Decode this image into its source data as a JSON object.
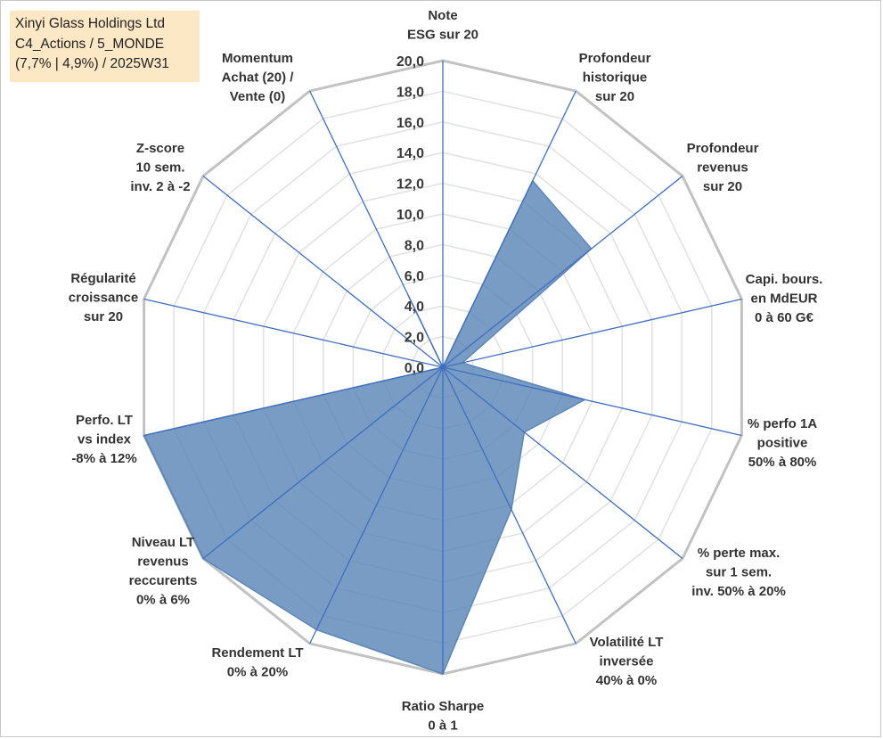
{
  "title_lines": [
    "Xinyi Glass Holdings Ltd",
    "C4_Actions / 5_MONDE",
    "(7,7% | 4,9%) / 2025W31"
  ],
  "colors": {
    "fill": "#5b86b8",
    "axis": "#3f6fbf",
    "grid": "#e2e2e2",
    "outer": "#c2c2c2",
    "title_bg": "#fde8c6"
  },
  "chart_data": {
    "type": "radar",
    "rmax": 20,
    "tick_step": 2,
    "ticks": [
      "0,0",
      "2,0",
      "4,0",
      "6,0",
      "8,0",
      "10,0",
      "12,0",
      "14,0",
      "16,0",
      "18,0",
      "20,0"
    ],
    "axes": [
      {
        "lines": [
          "Note",
          "ESG sur 20"
        ],
        "value": 0
      },
      {
        "lines": [
          "Profondeur",
          "historique",
          "sur 20"
        ],
        "value": 13.5
      },
      {
        "lines": [
          "Profondeur",
          "revenus",
          "sur 20"
        ],
        "value": 12.4
      },
      {
        "lines": [
          "Capi. bours.",
          "en MdEUR",
          "0 à 60 G€"
        ],
        "value": 1.3
      },
      {
        "lines": [
          "% perfo 1A",
          "positive",
          "50% à 80%"
        ],
        "value": 9.5
      },
      {
        "lines": [
          "% perte max.",
          "sur 1 sem.",
          "inv. 50% à 20%"
        ],
        "value": 6.8
      },
      {
        "lines": [
          "Volatilité LT",
          "inversée",
          "40% à 0%"
        ],
        "value": 10.3
      },
      {
        "lines": [
          "Ratio Sharpe",
          "0 à 1"
        ],
        "value": 20
      },
      {
        "lines": [
          "Rendement LT",
          "0% à 20%"
        ],
        "value": 19.0
      },
      {
        "lines": [
          "Niveau LT",
          "revenus",
          "reccurents",
          "0% à 6%"
        ],
        "value": 20
      },
      {
        "lines": [
          "Perfo. LT",
          "vs index",
          "-8% à 12%"
        ],
        "value": 20
      },
      {
        "lines": [
          "Régularité",
          "croissance",
          "sur 20"
        ],
        "value": 0
      },
      {
        "lines": [
          "Z-score",
          "10 sem.",
          "inv. 2 à -2"
        ],
        "value": 0
      },
      {
        "lines": [
          "Momentum",
          "Achat (20) /",
          "Vente (0)"
        ],
        "value": 5.2
      }
    ]
  }
}
